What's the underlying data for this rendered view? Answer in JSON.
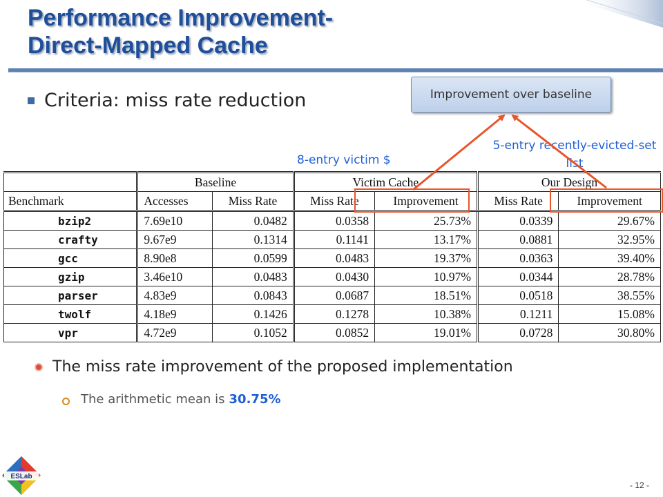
{
  "slide": {
    "title_line1": "Performance Improvement-",
    "title_line2": "Direct-Mapped Cache",
    "criteria": "Criteria: miss rate reduction",
    "callout": "Improvement over baseline",
    "label_victim": "8-entry victim $",
    "label_ours": "5-entry recently-evicted-set list",
    "sub_bullet": "The miss rate improvement of the proposed implementation",
    "sub_sub_prefix": "The arithmetic mean is",
    "sub_sub_value": "30.75%",
    "page_number": "- 12 -",
    "logo_text": "ESLab"
  },
  "table": {
    "groups": {
      "baseline": "Baseline",
      "victim": "Victim Cache",
      "ours": "Our Design"
    },
    "columns": {
      "benchmark": "Benchmark",
      "accesses": "Accesses",
      "miss_rate": "Miss Rate",
      "victim_miss_rate": "Miss Rate",
      "victim_improvement": "Improvement",
      "ours_miss_rate": "Miss Rate",
      "ours_improvement": "Improvement"
    },
    "rows": [
      {
        "benchmark": "bzip2",
        "accesses": "7.69e10",
        "miss_rate": "0.0482",
        "victim_miss_rate": "0.0358",
        "victim_improvement": "25.73%",
        "ours_miss_rate": "0.0339",
        "ours_improvement": "29.67%"
      },
      {
        "benchmark": "crafty",
        "accesses": "9.67e9",
        "miss_rate": "0.1314",
        "victim_miss_rate": "0.1141",
        "victim_improvement": "13.17%",
        "ours_miss_rate": "0.0881",
        "ours_improvement": "32.95%"
      },
      {
        "benchmark": "gcc",
        "accesses": "8.90e8",
        "miss_rate": "0.0599",
        "victim_miss_rate": "0.0483",
        "victim_improvement": "19.37%",
        "ours_miss_rate": "0.0363",
        "ours_improvement": "39.40%"
      },
      {
        "benchmark": "gzip",
        "accesses": "3.46e10",
        "miss_rate": "0.0483",
        "victim_miss_rate": "0.0430",
        "victim_improvement": "10.97%",
        "ours_miss_rate": "0.0344",
        "ours_improvement": "28.78%"
      },
      {
        "benchmark": "parser",
        "accesses": "4.83e9",
        "miss_rate": "0.0843",
        "victim_miss_rate": "0.0687",
        "victim_improvement": "18.51%",
        "ours_miss_rate": "0.0518",
        "ours_improvement": "38.55%"
      },
      {
        "benchmark": "twolf",
        "accesses": "4.18e9",
        "miss_rate": "0.1426",
        "victim_miss_rate": "0.1278",
        "victim_improvement": "10.38%",
        "ours_miss_rate": "0.1211",
        "ours_improvement": "15.08%"
      },
      {
        "benchmark": "vpr",
        "accesses": "4.72e9",
        "miss_rate": "0.1052",
        "victim_miss_rate": "0.0852",
        "victim_improvement": "19.01%",
        "ours_miss_rate": "0.0728",
        "ours_improvement": "30.80%"
      }
    ]
  },
  "colors": {
    "title": "#1f4e9a",
    "accent_label": "#1f5fd6",
    "highlight": "#e8552b",
    "arrow": "#e8552b"
  }
}
